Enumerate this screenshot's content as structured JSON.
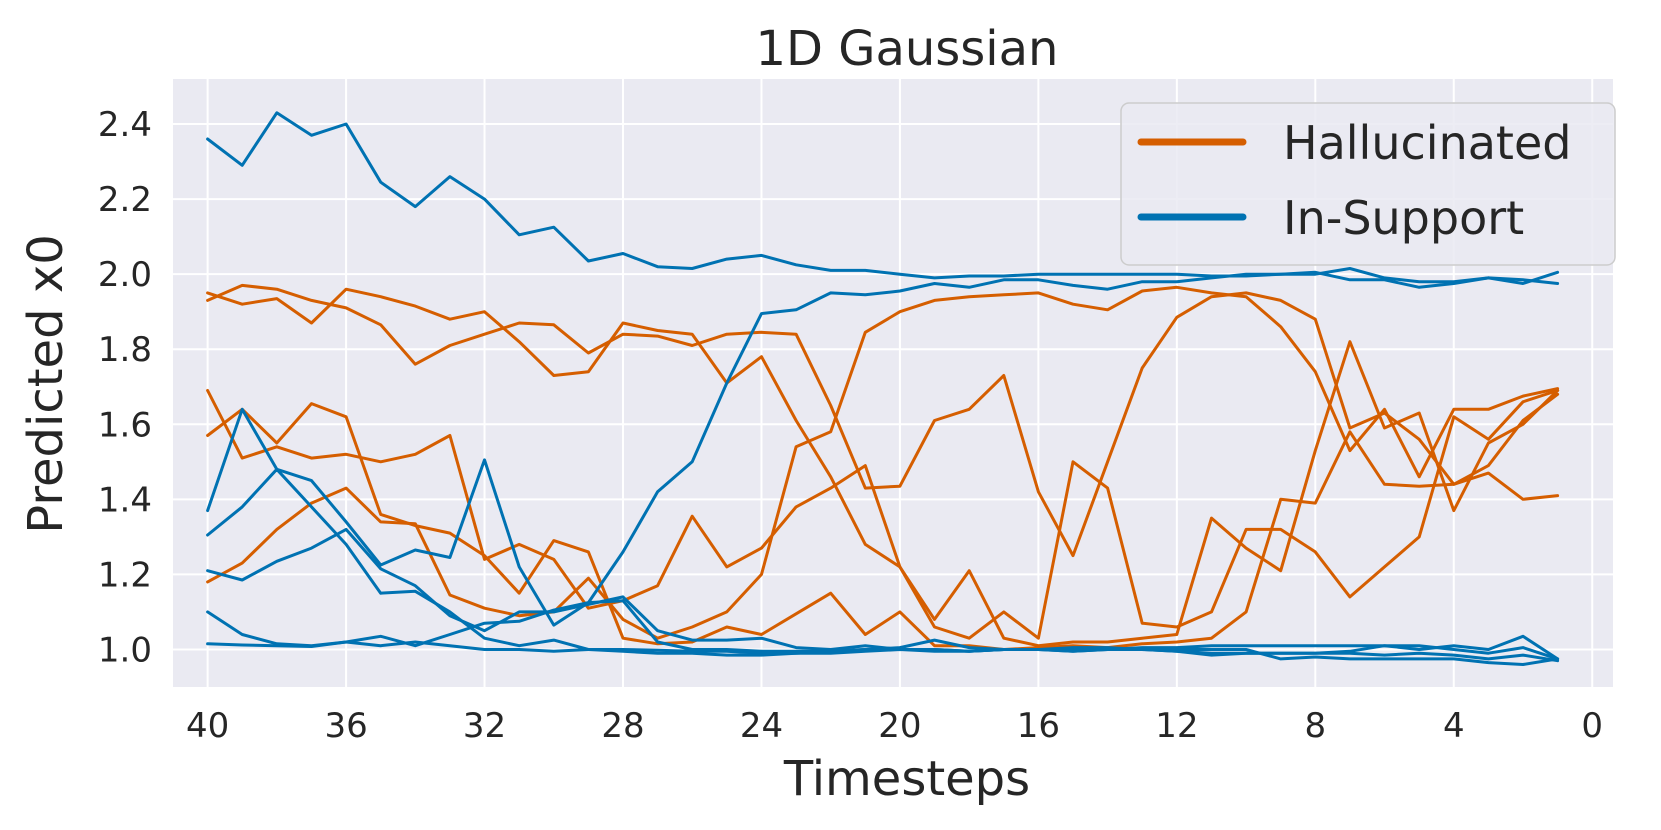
{
  "chart_data": {
    "type": "line",
    "title": "1D Gaussian",
    "xlabel": "Timesteps",
    "ylabel": "Predicted x0",
    "xlim": [
      41.0,
      -0.6
    ],
    "ylim": [
      0.9,
      2.52
    ],
    "x_reversed": true,
    "xticks": [
      40,
      36,
      32,
      28,
      24,
      20,
      16,
      12,
      8,
      4,
      0
    ],
    "xtick_labels": [
      "40",
      "36",
      "32",
      "28",
      "24",
      "20",
      "16",
      "12",
      "8",
      "4",
      "0"
    ],
    "yticks": [
      1.0,
      1.2,
      1.4,
      1.6,
      1.8,
      2.0,
      2.2,
      2.4
    ],
    "ytick_labels": [
      "1.0",
      "1.2",
      "1.4",
      "1.6",
      "1.8",
      "2.0",
      "2.2",
      "2.4"
    ],
    "grid": true,
    "legend_position": "top-right",
    "legend": [
      {
        "label": "Hallucinated",
        "color": "#d55e00"
      },
      {
        "label": "In-Support",
        "color": "#0072b2"
      }
    ],
    "colors": {
      "Hallucinated": "#d55e00",
      "In-Support": "#0072b2",
      "background": "#eaeaf2",
      "grid": "#ffffff"
    },
    "x": [
      40,
      39,
      38,
      37,
      36,
      35,
      34,
      33,
      32,
      31,
      30,
      29,
      28,
      27,
      26,
      25,
      24,
      23,
      22,
      21,
      20,
      19,
      18,
      17,
      16,
      15,
      14,
      13,
      12,
      11,
      10,
      9,
      8,
      7,
      6,
      5,
      4,
      3,
      2,
      1
    ],
    "series": [
      {
        "group": "Hallucinated",
        "values": [
          1.95,
          1.92,
          1.935,
          1.87,
          1.96,
          1.94,
          1.915,
          1.88,
          1.9,
          1.82,
          1.73,
          1.74,
          1.87,
          1.85,
          1.84,
          1.71,
          1.78,
          1.61,
          1.46,
          1.28,
          1.22,
          1.08,
          1.21,
          1.03,
          1.01,
          1.02,
          1.02,
          1.03,
          1.04,
          1.35,
          1.27,
          1.21,
          1.53,
          1.82,
          1.59,
          1.63,
          1.37,
          1.55,
          1.6,
          1.69
        ]
      },
      {
        "group": "Hallucinated",
        "values": [
          1.93,
          1.97,
          1.96,
          1.93,
          1.91,
          1.865,
          1.76,
          1.81,
          1.84,
          1.87,
          1.865,
          1.79,
          1.84,
          1.835,
          1.81,
          1.84,
          1.845,
          1.84,
          1.65,
          1.43,
          1.435,
          1.61,
          1.64,
          1.73,
          1.42,
          1.25,
          1.5,
          1.75,
          1.885,
          1.94,
          1.95,
          1.93,
          1.88,
          1.59,
          1.63,
          1.56,
          1.44,
          1.49,
          1.61,
          1.68
        ]
      },
      {
        "group": "Hallucinated",
        "values": [
          1.69,
          1.51,
          1.54,
          1.51,
          1.52,
          1.5,
          1.52,
          1.57,
          1.24,
          1.28,
          1.24,
          1.11,
          1.13,
          1.17,
          1.355,
          1.22,
          1.27,
          1.38,
          1.43,
          1.49,
          1.22,
          1.06,
          1.03,
          1.1,
          1.03,
          1.5,
          1.43,
          1.07,
          1.06,
          1.1,
          1.32,
          1.32,
          1.26,
          1.14,
          1.22,
          1.3,
          1.62,
          1.56,
          1.66,
          1.69
        ]
      },
      {
        "group": "Hallucinated",
        "values": [
          1.57,
          1.64,
          1.55,
          1.655,
          1.62,
          1.36,
          1.33,
          1.31,
          1.25,
          1.15,
          1.29,
          1.26,
          1.03,
          1.015,
          1.02,
          1.06,
          1.04,
          1.095,
          1.15,
          1.04,
          1.1,
          1.01,
          1.01,
          1.0,
          1.005,
          1.01,
          1.005,
          1.015,
          1.02,
          1.03,
          1.1,
          1.4,
          1.39,
          1.58,
          1.44,
          1.435,
          1.44,
          1.47,
          1.4,
          1.41
        ]
      },
      {
        "group": "Hallucinated",
        "values": [
          1.18,
          1.23,
          1.32,
          1.39,
          1.43,
          1.34,
          1.335,
          1.145,
          1.11,
          1.09,
          1.1,
          1.19,
          1.08,
          1.03,
          1.06,
          1.1,
          1.2,
          1.54,
          1.58,
          1.845,
          1.9,
          1.93,
          1.94,
          1.945,
          1.95,
          1.92,
          1.905,
          1.955,
          1.965,
          1.95,
          1.94,
          1.86,
          1.74,
          1.53,
          1.64,
          1.46,
          1.64,
          1.64,
          1.675,
          1.695
        ]
      },
      {
        "group": "In-Support",
        "values": [
          2.36,
          2.29,
          2.43,
          2.37,
          2.4,
          2.245,
          2.18,
          2.26,
          2.2,
          2.105,
          2.125,
          2.035,
          2.055,
          2.02,
          2.015,
          2.04,
          2.05,
          2.025,
          2.01,
          2.01,
          2.0,
          1.99,
          1.995,
          1.995,
          2.0,
          2.0,
          2.0,
          2.0,
          2.0,
          1.995,
          1.995,
          2.0,
          2.005,
          1.985,
          1.985,
          1.965,
          1.975,
          1.99,
          1.975,
          2.005
        ]
      },
      {
        "group": "In-Support",
        "values": [
          1.37,
          1.64,
          1.48,
          1.45,
          1.34,
          1.225,
          1.265,
          1.245,
          1.505,
          1.22,
          1.065,
          1.125,
          1.26,
          1.42,
          1.5,
          1.71,
          1.895,
          1.905,
          1.95,
          1.945,
          1.955,
          1.975,
          1.965,
          1.985,
          1.985,
          1.97,
          1.96,
          1.98,
          1.98,
          1.99,
          2.0,
          2.0,
          2.0,
          2.015,
          1.99,
          1.98,
          1.98,
          1.99,
          1.985,
          1.975
        ]
      },
      {
        "group": "In-Support",
        "values": [
          1.305,
          1.38,
          1.48,
          1.38,
          1.28,
          1.15,
          1.155,
          1.1,
          1.03,
          1.01,
          1.025,
          1.0,
          0.995,
          0.99,
          0.99,
          0.985,
          0.985,
          0.99,
          0.995,
          1.0,
          1.005,
          1.025,
          1.005,
          1.0,
          1.0,
          0.995,
          1.0,
          1.0,
          0.995,
          0.985,
          0.99,
          0.99,
          0.99,
          0.995,
          1.01,
          1.0,
          1.01,
          1.0,
          1.035,
          0.975
        ]
      },
      {
        "group": "In-Support",
        "values": [
          1.21,
          1.185,
          1.235,
          1.27,
          1.32,
          1.215,
          1.17,
          1.09,
          1.05,
          1.1,
          1.1,
          1.12,
          1.14,
          1.05,
          1.025,
          1.025,
          1.03,
          1.005,
          1.0,
          1.01,
          1.0,
          1.0,
          0.995,
          1.0,
          1.0,
          1.005,
          1.005,
          1.0,
          1.0,
          1.0,
          1.0,
          0.975,
          0.98,
          0.975,
          0.975,
          0.975,
          0.975,
          0.965,
          0.96,
          0.975
        ]
      },
      {
        "group": "In-Support",
        "values": [
          1.1,
          1.04,
          1.015,
          1.01,
          1.02,
          1.035,
          1.01,
          1.04,
          1.07,
          1.075,
          1.105,
          1.125,
          1.13,
          1.02,
          1.0,
          1.0,
          0.995,
          0.995,
          0.995,
          1.0,
          1.0,
          1.0,
          0.995,
          1.0,
          1.0,
          0.995,
          1.0,
          1.005,
          1.005,
          1.01,
          1.01,
          1.01,
          1.01,
          1.01,
          1.01,
          1.01,
          1.0,
          0.99,
          1.005,
          0.975
        ]
      },
      {
        "group": "In-Support",
        "values": [
          1.015,
          1.012,
          1.01,
          1.008,
          1.02,
          1.01,
          1.02,
          1.01,
          1.0,
          1.0,
          0.995,
          1.0,
          1.0,
          0.998,
          0.995,
          0.995,
          0.99,
          0.99,
          0.99,
          0.995,
          1.0,
          0.995,
          0.995,
          1.0,
          1.0,
          1.0,
          1.0,
          1.0,
          0.995,
          0.99,
          0.99,
          0.99,
          0.99,
          0.99,
          0.985,
          0.99,
          0.985,
          0.975,
          0.985,
          0.97
        ]
      }
    ]
  }
}
